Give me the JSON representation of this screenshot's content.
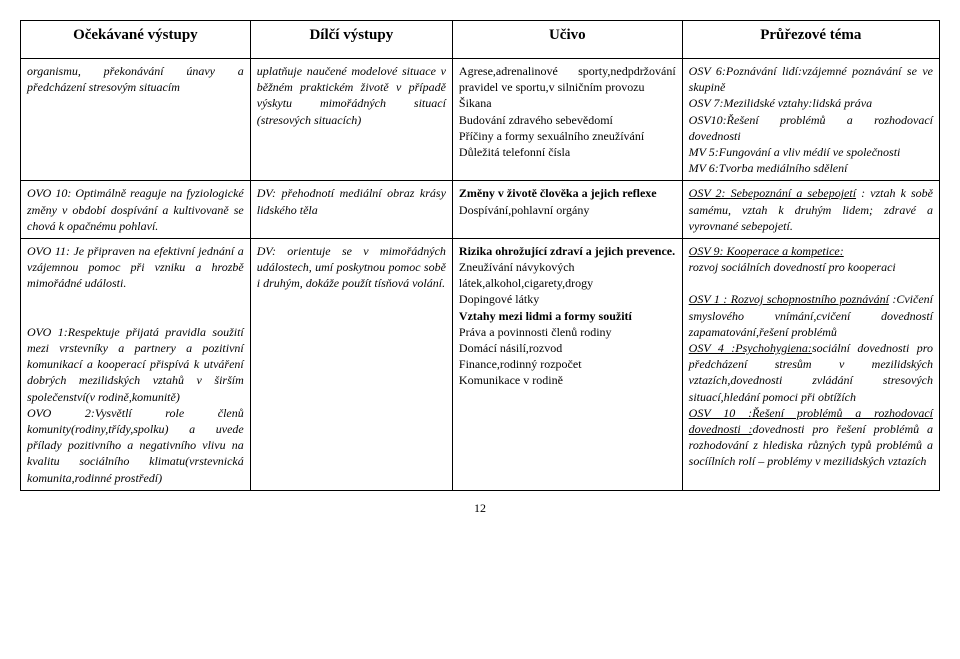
{
  "headers": {
    "c1": "Očekávané výstupy",
    "c2": "Dílčí výstupy",
    "c3": "Učivo",
    "c4": "Průřezové téma"
  },
  "row1": {
    "c1": "organismu, překonávání únavy a předcházení stresovým situacím",
    "c2": "uplatňuje naučené modelové situace v běžném praktickém životě v případě výskytu mimořádných situací (stresových situacích)",
    "c3": "Agrese,adrenalinové sporty,nedpdržování pravidel ve sportu,v silničním provozu\nŠikana\nBudování zdravého sebevědomí\nPříčiny a formy sexuálního zneužívání\nDůležitá telefonní čísla",
    "c4": "OSV 6:Poznávání lidí:vzájemné poznávání se ve skupině\nOSV 7:Mezilidské vztahy:lidská práva\nOSV10:Řešení problémů a rozhodovací dovednosti\nMV 5:Fungování a vliv médií ve společnosti\nMV 6:Tvorba mediálního sdělení"
  },
  "row2": {
    "c1": "OVO 10: Optimálně reaguje na fyziologické změny v období dospívání a kultivovaně se chová k opačnému pohlaví.",
    "c2": "DV: přehodnotí mediální obraz krásy lidského těla",
    "c3a": "Změny v životě člověka a jejich reflexe",
    "c3b": "Dospívání,pohlavní orgány",
    "c4a": "OSV 2:  Sebepoznání a sebepojetí",
    "c4b": " : vztah k sobě samému, vztah k druhým lidem; zdravé a vyrovnané sebepojetí."
  },
  "row3": {
    "c1": "OVO 11: Je připraven na efektivní jednání a vzájemnou pomoc při vzniku a hrozbě mimořádné události.\n\n\nOVO 1:Respektuje přijatá pravidla soužití mezi vrstevníky a partnery a pozitivní komunikací a kooperací přispívá k utváření dobrých mezilidských vztahů v širším společenství(v rodině,komunitě)\nOVO 2:Vysvětlí role členů komunity(rodiny,třídy,spolku) a uvede přílady pozitivního a negativního vlivu na kvalitu sociálního klimatu(vrstevnická komunita,rodinné prostředí)",
    "c2": "DV: orientuje se v mimořádných událostech, umí poskytnou pomoc sobě i druhým, dokáže použít tísňová volání.",
    "c3a": "Rizika ohrožující zdraví a jejich prevence.",
    "c3b": " Zneužívání návykových látek,alkohol,cigarety,drogy\nDopingové látky",
    "c3c": "Vztahy mezi lidmi a formy soužití",
    "c3d": "Práva a povinnosti členů rodiny\nDomácí násilí,rozvod\nFinance,rodinný rozpočet\nKomunikace v rodině",
    "c4a": "OSV 9: Kooperace a kompetice:",
    "c4b": "rozvoj sociálních dovedností pro kooperaci",
    "c4c": "OSV 1 : Rozvoj schopnostního poznávání",
    "c4d": " :Cvičení smyslového vnímání,cvičení dovedností zapamatování,řešení problémů",
    "c4e": "OSV 4 :Psychohygiena:",
    "c4f": "sociální dovednosti pro předcházení stresům v mezilidských vztazích,dovednosti zvládání stresových situací,hledání pomoci při obtížích",
    "c4g": "OSV 10 :Řešení problémů a rozhodovací dovednosti :",
    "c4h": "dovednosti pro řešení problémů a rozhodování z hlediska různých typů problémů a socíílních rolí – problémy v mezilidských vztazích"
  },
  "pagenum": "12"
}
